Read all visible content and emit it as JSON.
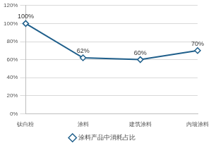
{
  "chart_data": {
    "type": "line",
    "categories": [
      "钛白粉",
      "涂料",
      "建筑涂料",
      "内墙涂料"
    ],
    "series": [
      {
        "name": "涂料产品中消耗占比",
        "color": "#1f5f8b",
        "values": [
          100,
          62,
          60,
          70
        ],
        "value_labels": [
          "100%",
          "62%",
          "60%",
          "70%"
        ],
        "marker": "diamond",
        "line_style": "solid"
      }
    ],
    "ylim": [
      0,
      120
    ],
    "yticks": [
      {
        "value": 0,
        "label": "0%"
      },
      {
        "value": 20,
        "label": "20%"
      },
      {
        "value": 40,
        "label": "40%"
      },
      {
        "value": 60,
        "label": "60%"
      },
      {
        "value": 80,
        "label": "80%"
      },
      {
        "value": 100,
        "label": "100%"
      },
      {
        "value": 120,
        "label": "120%"
      }
    ],
    "grid": true,
    "legend": "bottom",
    "data_labels": true
  }
}
